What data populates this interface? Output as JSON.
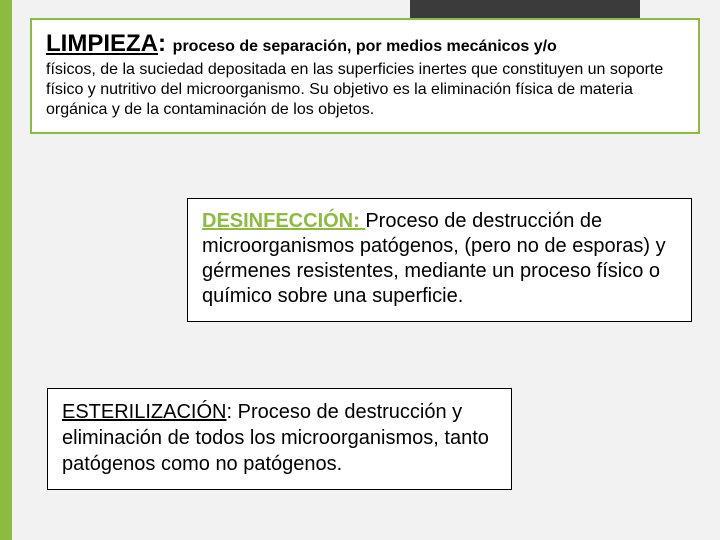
{
  "colors": {
    "accent": "#8bbb3f",
    "corner_box": "#3b3b3b",
    "page_bg": "#f2f2f2",
    "box_bg": "#ffffff",
    "text": "#000000"
  },
  "box1": {
    "title": "LIMPIEZA",
    "colon": ": ",
    "lead": "proceso de separación, por medios mecánicos y/o",
    "body": "físicos, de la suciedad depositada en las superficies inertes que constituyen un soporte físico y nutritivo del microorganismo. Su objetivo es la eliminación física de materia orgánica y de la contaminación de los objetos.",
    "title_fontsize": 24,
    "body_fontsize": 16,
    "border_color": "#8bbb3f",
    "border_width": 2
  },
  "box2": {
    "title": "DESINFECCIÓN: ",
    "body": "Proceso de destrucción de microorganismos patógenos, (pero no de esporas) y gérmenes resistentes, mediante un proceso físico o químico sobre una superficie.",
    "title_color": "#8bbb3f",
    "title_fontsize": 20,
    "body_fontsize": 20,
    "border_color": "#000000",
    "border_width": 1
  },
  "box3": {
    "title": "ESTERILIZACIÓN",
    "colon": ": ",
    "body": "Proceso de destrucción y eliminación de todos los microorganismos, tanto patógenos como no patógenos.",
    "title_fontsize": 20,
    "body_fontsize": 20,
    "border_color": "#000000",
    "border_width": 1
  }
}
